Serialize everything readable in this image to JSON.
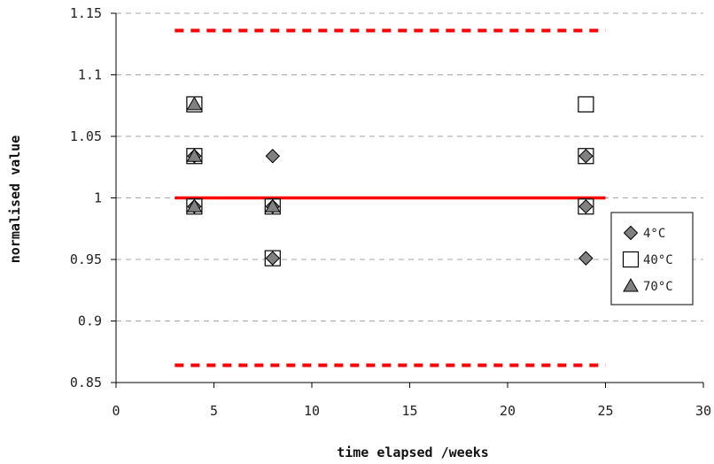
{
  "chart_data": {
    "type": "scatter",
    "xlabel": "time elapsed /weeks",
    "ylabel": "normalised value",
    "xlim": [
      0,
      30
    ],
    "ylim": [
      0.85,
      1.15
    ],
    "x_ticks": [
      0,
      5,
      10,
      15,
      20,
      25,
      30
    ],
    "x_tick_labels": [
      "0",
      "5",
      "10",
      "15",
      "20",
      "25",
      "30"
    ],
    "y_ticks": [
      0.85,
      0.9,
      0.95,
      1.0,
      1.05,
      1.1,
      1.15
    ],
    "y_tick_labels": [
      "0.85",
      "0.9",
      "0.95",
      "1",
      "1.05",
      "1.1",
      "1.15"
    ],
    "grid": "horizontal dashed",
    "legend_position": "right",
    "series": [
      {
        "name": "4°C",
        "marker": "diamond",
        "color": "#808080",
        "points": [
          {
            "x": 4,
            "y": 1.034
          },
          {
            "x": 4,
            "y": 0.993
          },
          {
            "x": 8,
            "y": 1.034
          },
          {
            "x": 8,
            "y": 0.993
          },
          {
            "x": 8,
            "y": 0.951
          },
          {
            "x": 24,
            "y": 1.034
          },
          {
            "x": 24,
            "y": 0.993
          },
          {
            "x": 24,
            "y": 0.951
          }
        ]
      },
      {
        "name": "40°C",
        "marker": "square",
        "color": "#ffffff",
        "points": [
          {
            "x": 4,
            "y": 1.076
          },
          {
            "x": 4,
            "y": 1.034
          },
          {
            "x": 4,
            "y": 0.993
          },
          {
            "x": 8,
            "y": 0.993
          },
          {
            "x": 8,
            "y": 0.951
          },
          {
            "x": 24,
            "y": 1.076
          },
          {
            "x": 24,
            "y": 1.034
          },
          {
            "x": 24,
            "y": 0.993
          }
        ]
      },
      {
        "name": "70°C",
        "marker": "triangle",
        "color": "#808080",
        "points": [
          {
            "x": 4,
            "y": 1.076
          },
          {
            "x": 4,
            "y": 1.034
          },
          {
            "x": 4,
            "y": 0.993
          },
          {
            "x": 8,
            "y": 0.993
          }
        ]
      }
    ],
    "reference_lines": [
      {
        "y": 1.0,
        "x_range": [
          3,
          25
        ],
        "style": "solid",
        "color": "#ff0000"
      },
      {
        "y": 1.136,
        "x_range": [
          3,
          25
        ],
        "style": "dashed",
        "color": "#ff0000"
      },
      {
        "y": 0.864,
        "x_range": [
          3,
          25
        ],
        "style": "dashed",
        "color": "#ff0000"
      }
    ]
  }
}
